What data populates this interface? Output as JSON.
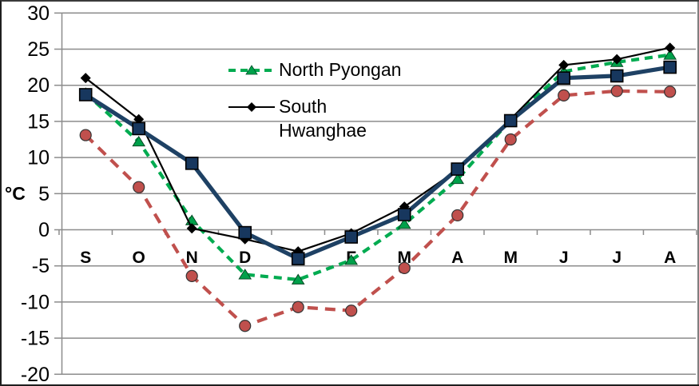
{
  "chart_data": {
    "type": "line",
    "title": "",
    "xlabel": "",
    "ylabel": "°C",
    "ylim": [
      -20,
      30
    ],
    "y_ticks": [
      30,
      25,
      20,
      15,
      10,
      5,
      0,
      -5,
      -10,
      -15,
      -20
    ],
    "categories": [
      "S",
      "O",
      "N",
      "D",
      "J",
      "F",
      "M",
      "A",
      "M",
      "J",
      "J",
      "A"
    ],
    "grid": "horizontal-only",
    "legend_position": "inside-top-center",
    "legend_labels": [
      "North Pyongan",
      "South\nHwanghae"
    ],
    "series": [
      {
        "name": "North Pyongan",
        "in_legend": true,
        "line_style": "dashed",
        "marker": "triangle",
        "color": "#00AB50",
        "marker_fill": "#00A04A",
        "values": [
          18.9,
          12.2,
          1.3,
          -6.2,
          -6.9,
          -4.2,
          0.8,
          7.0,
          15.2,
          21.9,
          23.2,
          24.2
        ]
      },
      {
        "name": "South Hwanghae",
        "in_legend": true,
        "line_style": "solid",
        "marker": "diamond",
        "color": "#000000",
        "marker_fill": "#000000",
        "values": [
          21.0,
          15.3,
          0.2,
          -1.3,
          -3.0,
          -0.5,
          3.2,
          8.3,
          15.3,
          22.8,
          23.6,
          25.2
        ]
      },
      {
        "name": "",
        "in_legend": false,
        "line_style": "solid-thick",
        "marker": "square",
        "color": "#1E4164",
        "marker_fill": "#17375E",
        "values": [
          18.7,
          14.0,
          9.2,
          -0.4,
          -4.0,
          -1.0,
          2.1,
          8.4,
          15.1,
          21.0,
          21.3,
          22.5
        ]
      },
      {
        "name": "",
        "in_legend": false,
        "line_style": "dashed",
        "marker": "circle",
        "color": "#C0504D",
        "marker_fill": "#C0504D",
        "values": [
          13.1,
          5.9,
          -6.4,
          -13.3,
          -10.7,
          -11.2,
          -5.3,
          2.0,
          12.5,
          18.6,
          19.2,
          19.1
        ]
      }
    ],
    "colors": {
      "gridline": "#8C8C8C",
      "axis": "#8C8C8C",
      "text": "#000000",
      "background": "#FFFFFF"
    }
  }
}
